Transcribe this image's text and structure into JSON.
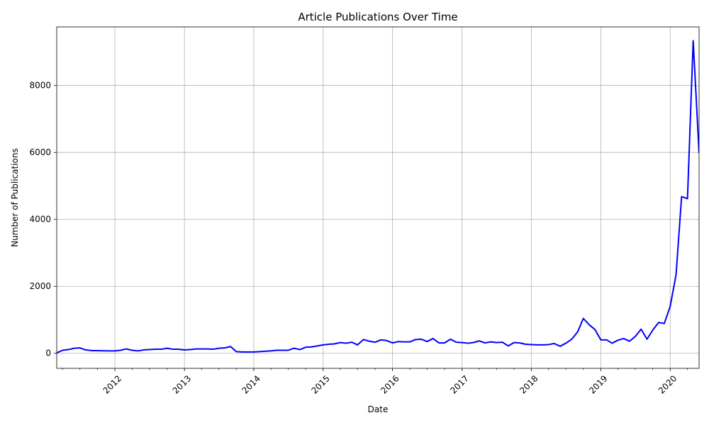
{
  "chart_data": {
    "type": "line",
    "title": "Article Publications Over Time",
    "xlabel": "Date",
    "ylabel": "Number of Publications",
    "xlim": [
      "2011-03-01",
      "2020-06-01"
    ],
    "ylim": [
      -450,
      9750
    ],
    "x_ticks": [
      "2012",
      "2013",
      "2014",
      "2015",
      "2016",
      "2017",
      "2018",
      "2019",
      "2020"
    ],
    "y_ticks": [
      0,
      2000,
      4000,
      6000,
      8000
    ],
    "grid": true,
    "series": [
      {
        "color": "#0000ff",
        "x": [
          "2011-03",
          "2011-04",
          "2011-05",
          "2011-06",
          "2011-07",
          "2011-08",
          "2011-09",
          "2011-10",
          "2011-11",
          "2011-12",
          "2012-01",
          "2012-02",
          "2012-03",
          "2012-04",
          "2012-05",
          "2012-06",
          "2012-07",
          "2012-08",
          "2012-09",
          "2012-10",
          "2012-11",
          "2012-12",
          "2013-01",
          "2013-02",
          "2013-03",
          "2013-04",
          "2013-05",
          "2013-06",
          "2013-07",
          "2013-08",
          "2013-09",
          "2013-10",
          "2013-11",
          "2013-12",
          "2014-01",
          "2014-02",
          "2014-03",
          "2014-04",
          "2014-05",
          "2014-06",
          "2014-07",
          "2014-08",
          "2014-09",
          "2014-10",
          "2014-11",
          "2014-12",
          "2015-01",
          "2015-02",
          "2015-03",
          "2015-04",
          "2015-05",
          "2015-06",
          "2015-07",
          "2015-08",
          "2015-09",
          "2015-10",
          "2015-11",
          "2015-12",
          "2016-01",
          "2016-02",
          "2016-03",
          "2016-04",
          "2016-05",
          "2016-06",
          "2016-07",
          "2016-08",
          "2016-09",
          "2016-10",
          "2016-11",
          "2016-12",
          "2017-01",
          "2017-02",
          "2017-03",
          "2017-04",
          "2017-05",
          "2017-06",
          "2017-07",
          "2017-08",
          "2017-09",
          "2017-10",
          "2017-11",
          "2017-12",
          "2018-01",
          "2018-02",
          "2018-03",
          "2018-04",
          "2018-05",
          "2018-06",
          "2018-07",
          "2018-08",
          "2018-09",
          "2018-10",
          "2018-11",
          "2018-12",
          "2019-01",
          "2019-02",
          "2019-03",
          "2019-04",
          "2019-05",
          "2019-06",
          "2019-07",
          "2019-08",
          "2019-09",
          "2019-10",
          "2019-11",
          "2019-12",
          "2020-01",
          "2020-02",
          "2020-03",
          "2020-04",
          "2020-05",
          "2020-06"
        ],
        "y": [
          10,
          90,
          110,
          150,
          160,
          100,
          80,
          80,
          75,
          70,
          70,
          90,
          130,
          90,
          70,
          100,
          110,
          120,
          120,
          150,
          120,
          120,
          100,
          110,
          130,
          130,
          130,
          120,
          150,
          160,
          200,
          50,
          40,
          40,
          40,
          50,
          60,
          70,
          90,
          90,
          90,
          150,
          110,
          180,
          190,
          220,
          250,
          270,
          280,
          320,
          300,
          330,
          250,
          410,
          360,
          330,
          400,
          380,
          310,
          350,
          340,
          340,
          410,
          420,
          350,
          440,
          310,
          310,
          420,
          330,
          320,
          300,
          320,
          370,
          310,
          340,
          320,
          330,
          220,
          320,
          310,
          270,
          260,
          250,
          250,
          260,
          290,
          210,
          300,
          420,
          640,
          1040,
          850,
          710,
          400,
          400,
          300,
          390,
          440,
          360,
          500,
          720,
          420,
          690,
          920,
          890,
          1400,
          2350,
          4680,
          4620,
          9340,
          5980
        ]
      }
    ]
  }
}
